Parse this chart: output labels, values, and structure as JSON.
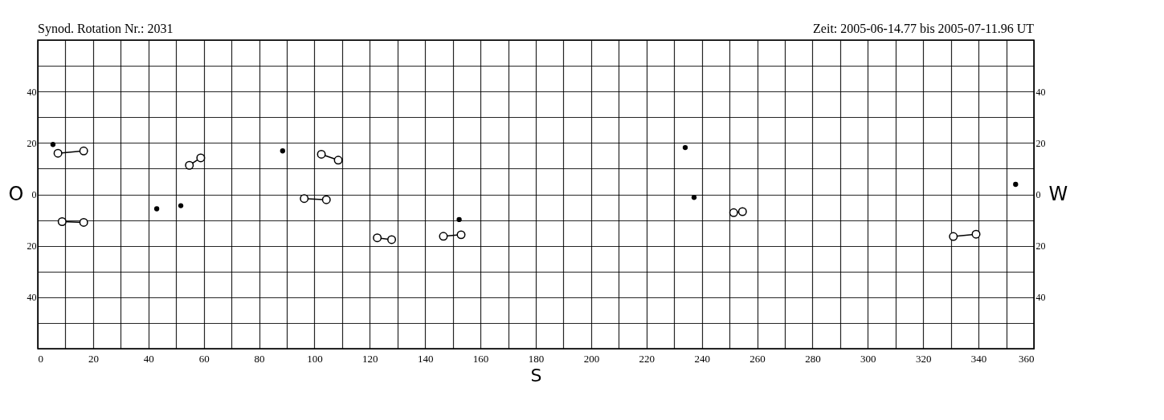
{
  "chart_data": {
    "type": "line",
    "title": "Synod. Rotation Nr.: 2031",
    "subtitle": "Zeit: 2005-06-14.77 bis 2005-07-11.96 UT",
    "xlabel": "S",
    "ylabel": "O",
    "y2label": "W",
    "xlim": [
      0,
      360
    ],
    "xticks": [
      0,
      {
        "value": 10,
        "label": null
      },
      20,
      {
        "value": 30,
        "label": null
      },
      40,
      {
        "value": 50,
        "label": null
      },
      60,
      {
        "value": 70,
        "label": null
      },
      80,
      {
        "value": 90,
        "label": null
      },
      100,
      {
        "value": 110,
        "label": null
      },
      120,
      {
        "value": 130,
        "label": null
      },
      140,
      {
        "value": 150,
        "label": null
      },
      160,
      {
        "value": 170,
        "label": null
      },
      180,
      {
        "value": 190,
        "label": null
      },
      200,
      {
        "value": 210,
        "label": null
      },
      220,
      {
        "value": 230,
        "label": null
      },
      240,
      {
        "value": 250,
        "label": null
      },
      260,
      {
        "value": 270,
        "label": null
      },
      280,
      {
        "value": 290,
        "label": null
      },
      300,
      {
        "value": 310,
        "label": null
      },
      320,
      {
        "value": 330,
        "label": null
      },
      340,
      {
        "value": 350,
        "label": null
      },
      360
    ],
    "ylim": [
      -60,
      60
    ],
    "yticks": [
      {
        "value": -60,
        "label": null
      },
      {
        "value": -50,
        "label": null
      },
      {
        "value": -40,
        "label": "40"
      },
      {
        "value": -30,
        "label": null
      },
      {
        "value": -20,
        "label": "20"
      },
      {
        "value": -10,
        "label": null
      },
      0,
      {
        "value": 10,
        "label": null
      },
      20,
      {
        "value": 30,
        "label": null
      },
      40,
      {
        "value": 50,
        "label": null
      },
      {
        "value": 60,
        "label": null
      }
    ],
    "y2lim": [
      -60,
      60
    ],
    "y2ticks": [
      {
        "value": -40,
        "label": "40"
      },
      {
        "value": -20,
        "label": "20"
      },
      0,
      20,
      40
    ],
    "grid": true,
    "marker": "circle",
    "line_style": "solid",
    "series": [
      {
        "color": "#000000",
        "x": [
          7.3,
          16.6
        ],
        "values": [
          16.0,
          16.9
        ]
      },
      {
        "color": "#000000",
        "x": [
          54.8,
          58.9
        ],
        "values": [
          11.3,
          14.2
        ]
      },
      {
        "color": "#000000",
        "x": [
          102.5,
          108.6
        ],
        "values": [
          15.6,
          13.3
        ]
      },
      {
        "color": "#000000",
        "x": [
          96.3,
          104.3
        ],
        "values": [
          -1.6,
          -2.1
        ]
      },
      {
        "color": "#000000",
        "x": [
          8.8,
          16.6
        ],
        "values": [
          -10.6,
          -10.9
        ]
      },
      {
        "color": "#000000",
        "x": [
          122.7,
          127.9
        ],
        "values": [
          -16.9,
          -17.6
        ]
      },
      {
        "color": "#000000",
        "x": [
          146.6,
          153.0
        ],
        "values": [
          -16.3,
          -15.7
        ]
      },
      {
        "color": "#000000",
        "x": [
          251.5,
          254.7
        ],
        "values": [
          -7.1,
          -6.7
        ]
      },
      {
        "color": "#000000",
        "x": [
          330.9,
          339.1
        ],
        "values": [
          -16.4,
          -15.5
        ]
      },
      {
        "type": "scatter",
        "color": "#000000",
        "x": [
          5.5,
          88.5,
          43.0,
          51.7,
          234.0,
          237.2,
          152.3,
          353.4
        ],
        "values": [
          19.4,
          16.9,
          -5.6,
          -4.4,
          18.2,
          -1.2,
          -9.8,
          3.9
        ]
      }
    ]
  }
}
